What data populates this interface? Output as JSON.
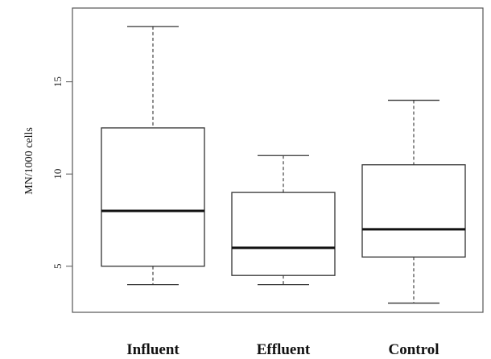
{
  "chart_data": {
    "type": "boxplot",
    "title": "",
    "xlabel": "",
    "ylabel": "MN/1000 cells",
    "ylim": [
      2.5,
      19
    ],
    "yticks": [
      5,
      10,
      15
    ],
    "grid": false,
    "categories": [
      "Influent",
      "Effluent",
      "Control"
    ],
    "boxes": [
      {
        "category": "Influent",
        "whisker_low": 4,
        "q1": 5,
        "median": 8,
        "q3": 12.5,
        "whisker_high": 18
      },
      {
        "category": "Effluent",
        "whisker_low": 4,
        "q1": 4.5,
        "median": 6,
        "q3": 9,
        "whisker_high": 11
      },
      {
        "category": "Control",
        "whisker_low": 3,
        "q1": 5.5,
        "median": 7,
        "q3": 10.5,
        "whisker_high": 14
      }
    ]
  }
}
